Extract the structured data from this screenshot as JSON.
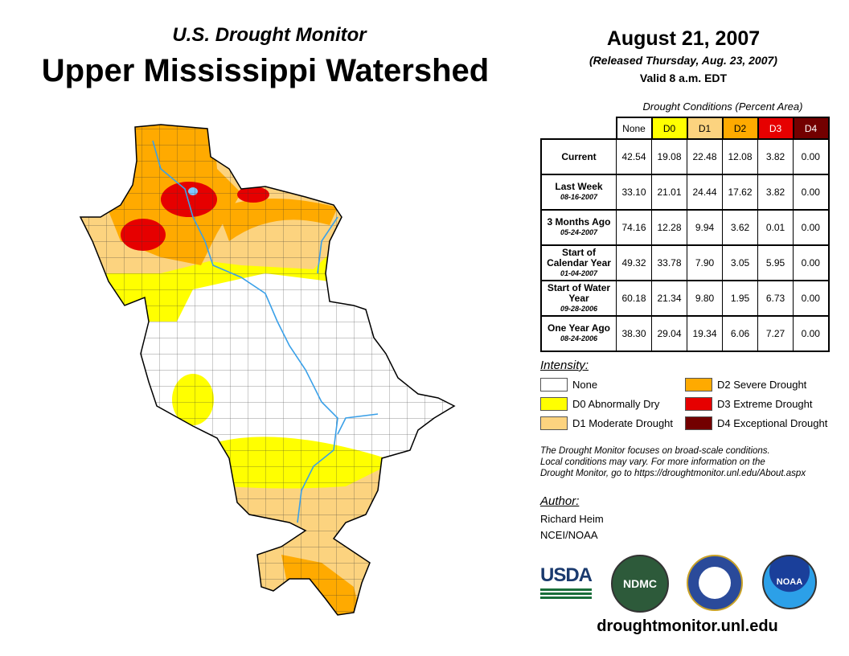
{
  "header": {
    "subtitle": "U.S. Drought Monitor",
    "title": "Upper Mississippi Watershed",
    "date": "August 21, 2007",
    "released": "(Released Thursday, Aug. 23, 2007)",
    "valid": "Valid 8 a.m. EDT"
  },
  "table": {
    "caption": "Drought Conditions (Percent Area)",
    "columns": [
      "None",
      "D0",
      "D1",
      "D2",
      "D3",
      "D4"
    ],
    "column_colors": [
      "#ffffff",
      "#ffff00",
      "#fcd37f",
      "#ffaa00",
      "#e60000",
      "#730000"
    ],
    "rows": [
      {
        "label": "Current",
        "date": "",
        "values": [
          "42.54",
          "19.08",
          "22.48",
          "12.08",
          "3.82",
          "0.00"
        ]
      },
      {
        "label": "Last Week",
        "date": "08-16-2007",
        "values": [
          "33.10",
          "21.01",
          "24.44",
          "17.62",
          "3.82",
          "0.00"
        ]
      },
      {
        "label": "3 Months Ago",
        "date": "05-24-2007",
        "values": [
          "74.16",
          "12.28",
          "9.94",
          "3.62",
          "0.01",
          "0.00"
        ]
      },
      {
        "label": "Start of Calendar Year",
        "date": "01-04-2007",
        "values": [
          "49.32",
          "33.78",
          "7.90",
          "3.05",
          "5.95",
          "0.00"
        ]
      },
      {
        "label": "Start of Water Year",
        "date": "09-28-2006",
        "values": [
          "60.18",
          "21.34",
          "9.80",
          "1.95",
          "6.73",
          "0.00"
        ]
      },
      {
        "label": "One Year Ago",
        "date": "08-24-2006",
        "values": [
          "38.30",
          "29.04",
          "19.34",
          "6.06",
          "7.27",
          "0.00"
        ]
      }
    ]
  },
  "legend": {
    "title": "Intensity:",
    "items": [
      {
        "label": "None",
        "color": "#ffffff"
      },
      {
        "label": "D0 Abnormally Dry",
        "color": "#ffff00"
      },
      {
        "label": "D1 Moderate Drought",
        "color": "#fcd37f"
      },
      {
        "label": "D2 Severe Drought",
        "color": "#ffaa00"
      },
      {
        "label": "D3 Extreme Drought",
        "color": "#e60000"
      },
      {
        "label": "D4 Exceptional Drought",
        "color": "#730000"
      }
    ]
  },
  "note": [
    "The Drought Monitor focuses on broad-scale conditions.",
    "Local conditions may vary. For more information on the",
    "Drought Monitor, go to https://droughtmonitor.unl.edu/About.aspx"
  ],
  "author": {
    "title": "Author:",
    "name": "Richard Heim",
    "org": "NCEI/NOAA"
  },
  "logos": {
    "usda": "USDA",
    "ndmc": "NDMC",
    "noaa": "NOAA"
  },
  "footer": {
    "url": "droughtmonitor.unl.edu"
  }
}
